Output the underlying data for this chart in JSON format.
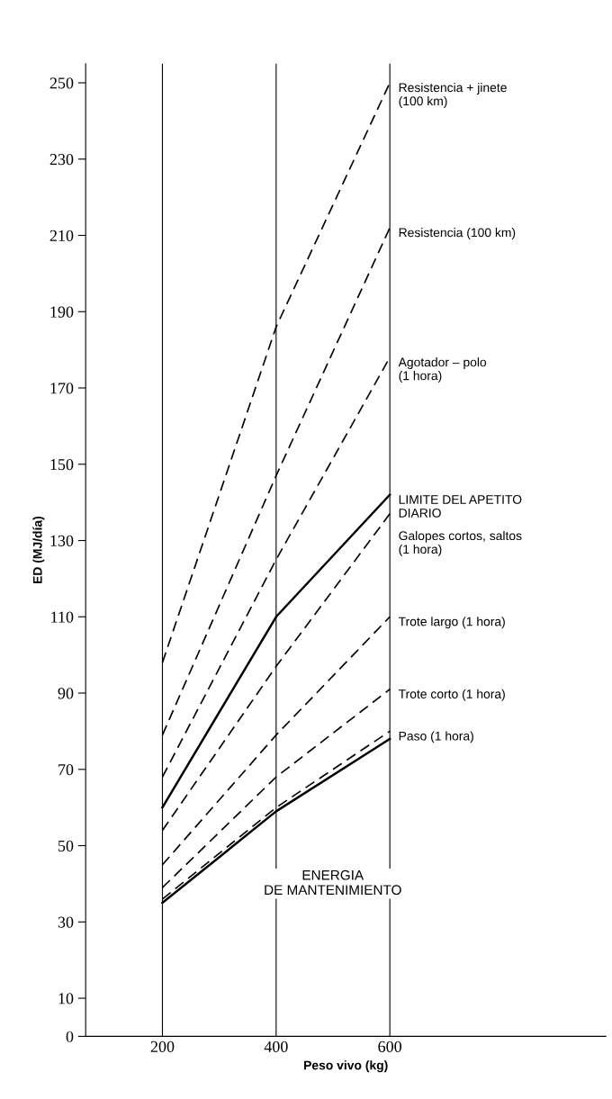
{
  "chart_data": {
    "type": "line",
    "xlabel": "Peso vivo (kg)",
    "ylabel": "ED (MJ/día)",
    "x": [
      200,
      400,
      600
    ],
    "xlim": [
      65,
      980
    ],
    "xticks": [
      200,
      400,
      600
    ],
    "ylim": [
      0,
      255
    ],
    "yticks": [
      0,
      10,
      30,
      50,
      70,
      90,
      110,
      130,
      150,
      170,
      190,
      210,
      230,
      250
    ],
    "grid": false,
    "legend": false,
    "marker": "none",
    "series": [
      {
        "name": "Resistencia + jinete\n(100 km)",
        "color": "#000000",
        "line_style": "dashed",
        "values": [
          98,
          186,
          250
        ]
      },
      {
        "name": "Resistencia (100 km)",
        "color": "#000000",
        "line_style": "dashed",
        "values": [
          79,
          147,
          212
        ]
      },
      {
        "name": "Agotador – polo\n(1 hora)",
        "color": "#000000",
        "line_style": "dashed",
        "values": [
          68,
          125,
          178
        ]
      },
      {
        "name": "LIMITE DEL APETITO\nDIARIO",
        "color": "#000000",
        "line_style": "solid",
        "values": [
          60,
          110,
          142
        ]
      },
      {
        "name": "Galopes cortos, saltos\n(1 hora)",
        "color": "#000000",
        "line_style": "dashed",
        "values": [
          54,
          97,
          137
        ]
      },
      {
        "name": "Trote largo (1 hora)",
        "color": "#000000",
        "line_style": "dashed",
        "values": [
          45,
          79,
          110
        ]
      },
      {
        "name": "Trote corto (1 hora)",
        "color": "#000000",
        "line_style": "dashed",
        "values": [
          39,
          68,
          91
        ]
      },
      {
        "name": "Paso (1 hora)",
        "color": "#000000",
        "line_style": "dashed",
        "values": [
          36,
          60,
          80
        ]
      },
      {
        "color": "#000000",
        "line_style": "solid",
        "values": [
          35,
          59,
          78
        ]
      }
    ],
    "ref_lines": [
      {
        "axis": "x",
        "value": 200,
        "color": "#000000",
        "line_style": "solid"
      },
      {
        "axis": "x",
        "value": 400,
        "color": "#000000",
        "line_style": "solid"
      },
      {
        "axis": "x",
        "value": 600,
        "color": "#000000",
        "line_style": "solid"
      }
    ],
    "annotations": [
      "ENERGIA\nDE MANTENIMIENTO"
    ]
  }
}
